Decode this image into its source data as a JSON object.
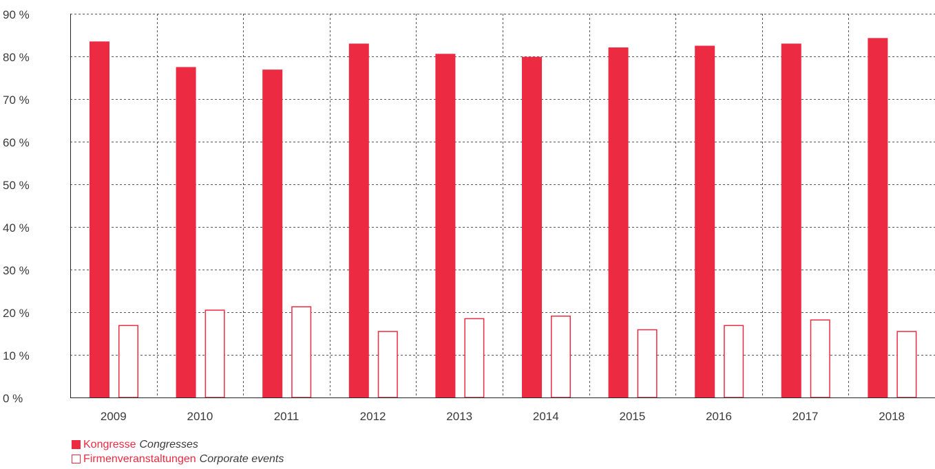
{
  "chart_data": {
    "type": "bar",
    "categories": [
      "2009",
      "2010",
      "2011",
      "2012",
      "2013",
      "2014",
      "2015",
      "2016",
      "2017",
      "2018"
    ],
    "series": [
      {
        "name": "Kongresse Congresses",
        "style": "filled",
        "values": [
          83.5,
          77.5,
          76.9,
          83.0,
          80.6,
          79.9,
          82.1,
          82.5,
          83.0,
          84.3
        ]
      },
      {
        "name": "Firmenveranstaltungen Corporate events",
        "style": "outline",
        "values": [
          17.0,
          20.6,
          21.4,
          15.6,
          18.6,
          19.2,
          16.0,
          17.0,
          18.3,
          15.6
        ]
      }
    ],
    "ylim": [
      0,
      90
    ],
    "y_ticks": [
      0,
      10,
      20,
      30,
      40,
      50,
      60,
      70,
      80,
      90
    ],
    "y_tick_labels": [
      "0 %",
      "10 %",
      "20 %",
      "30 %",
      "40 %",
      "50 %",
      "60 %",
      "70 %",
      "80 %",
      "90 %"
    ],
    "grid": "dashed",
    "legend_position": "bottom-left",
    "colors": {
      "bar": "#ec2a41",
      "grid": "#555555",
      "axis": "#222222",
      "text": "#3a3a3a"
    }
  },
  "legend": {
    "items": [
      {
        "de": "Kongresse",
        "en": "Congresses"
      },
      {
        "de": "Firmenveranstaltungen",
        "en": "Corporate events"
      }
    ]
  }
}
